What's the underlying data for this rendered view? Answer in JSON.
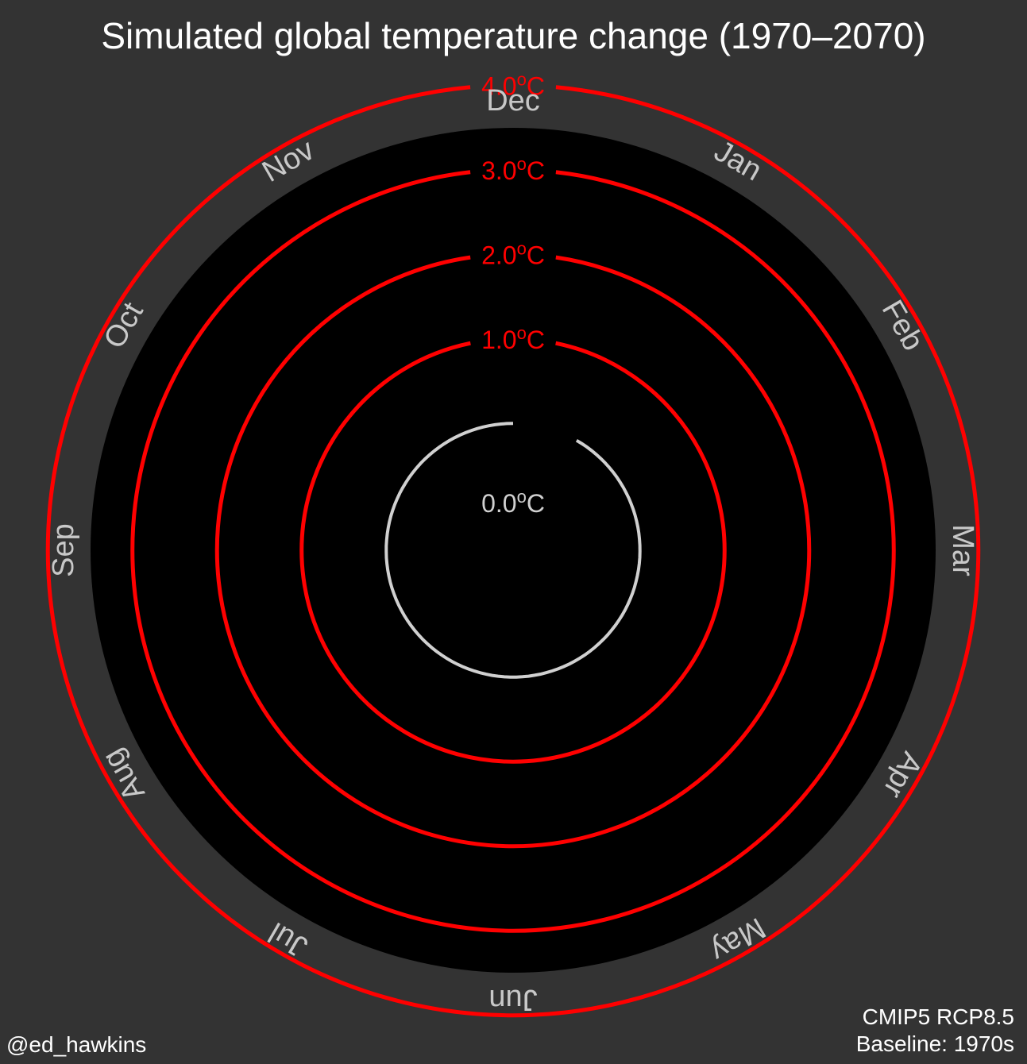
{
  "colors": {
    "background": "#333333",
    "plot_background": "#000000",
    "ring": "#ff0000",
    "zero_ring": "#d0d0d0",
    "month_label": "#c8c8c8",
    "text": "#ffffff"
  },
  "chart_data": {
    "type": "line",
    "coordinate_system": "polar",
    "title": "Simulated global temperature change (1970–2070)",
    "months": [
      "Jan",
      "Feb",
      "Mar",
      "Apr",
      "May",
      "Jun",
      "Jul",
      "Aug",
      "Sep",
      "Oct",
      "Nov",
      "Dec"
    ],
    "radial_axis": {
      "min": -1.5,
      "max": 4.5,
      "ticks": [
        {
          "value": 1.0,
          "label": "1.0",
          "unit": "°C"
        },
        {
          "value": 2.0,
          "label": "2.0",
          "unit": "°C"
        },
        {
          "value": 3.0,
          "label": "3.0",
          "unit": "°C"
        },
        {
          "value": 4.0,
          "label": "4.0",
          "unit": "°C"
        }
      ],
      "zero": {
        "value": 0.0,
        "label": "0.0",
        "unit": "°C"
      }
    },
    "series": [
      {
        "values": [
          0,
          0,
          0,
          0,
          0,
          0,
          0,
          0,
          0,
          0,
          0,
          0
        ]
      }
    ]
  },
  "footer": {
    "credit": "@ed_hawkins",
    "model": "CMIP5 RCP8.5",
    "baseline": "Baseline: 1970s"
  }
}
